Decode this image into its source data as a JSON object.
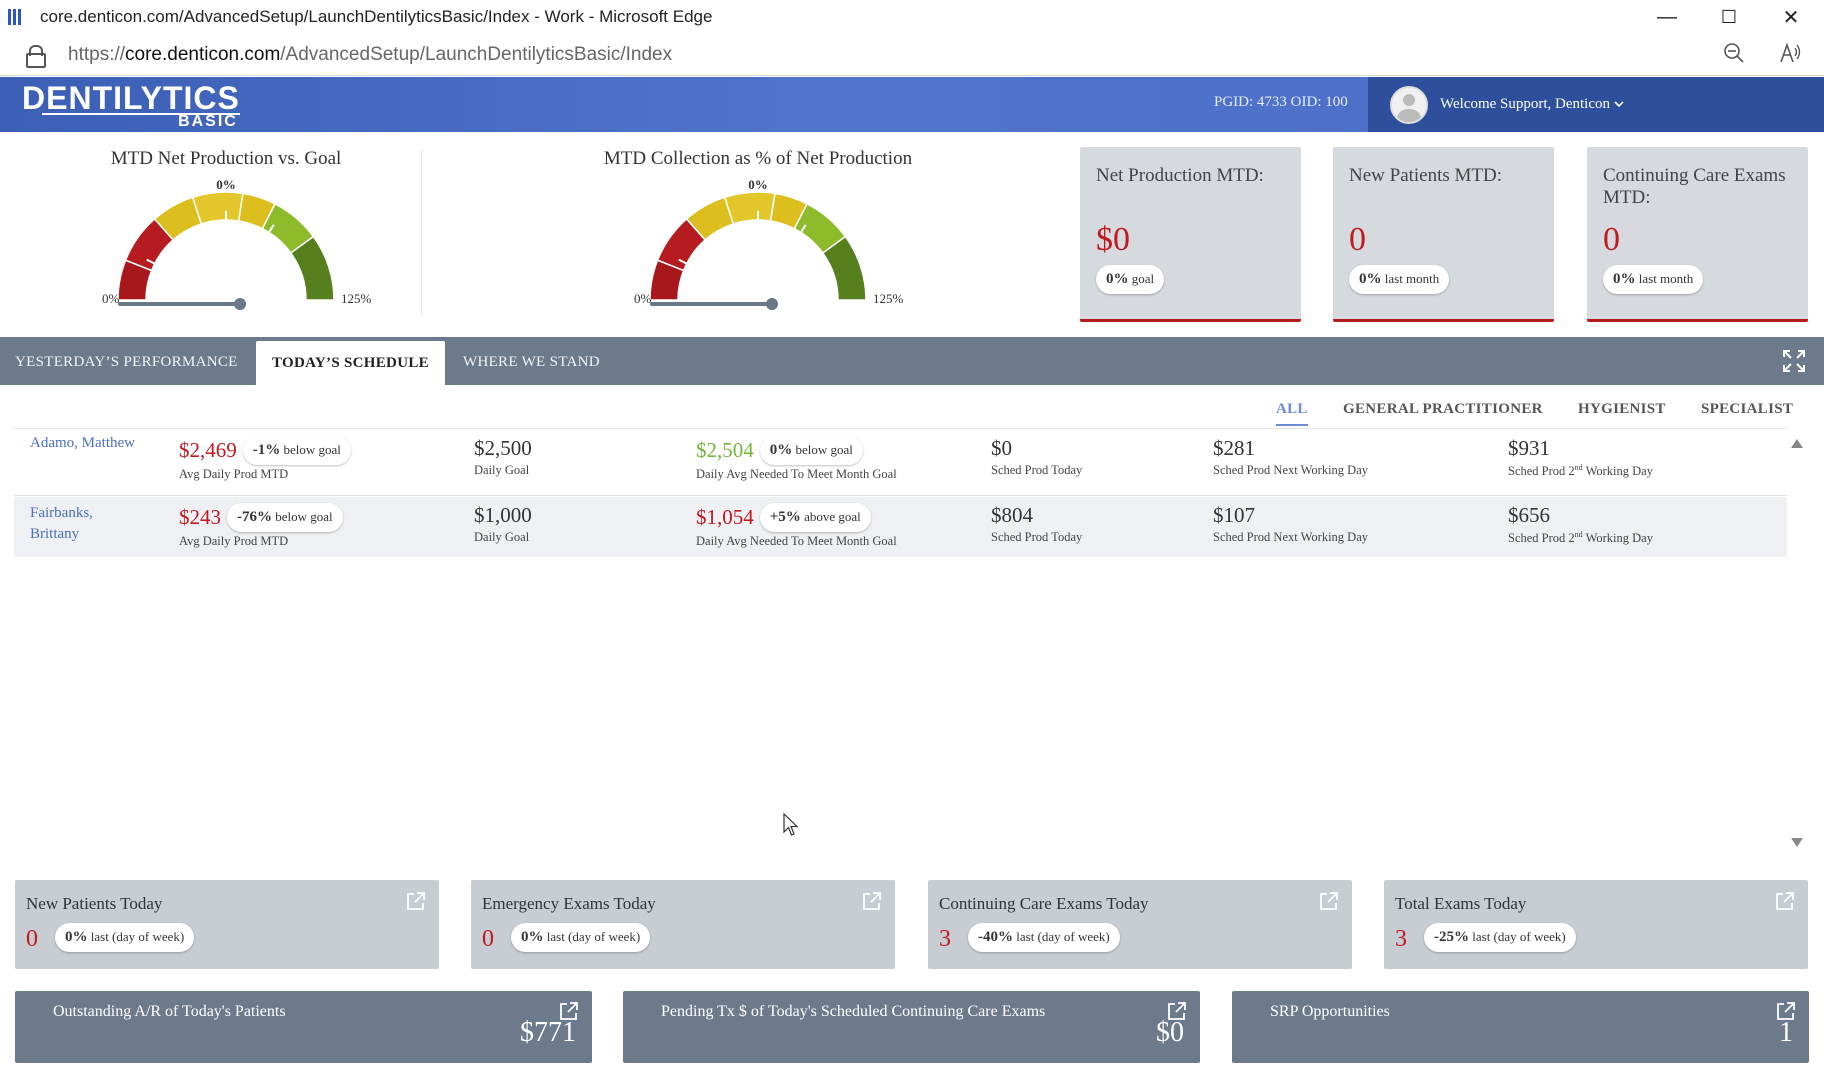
{
  "browser": {
    "window_title": "core.denticon.com/AdvancedSetup/LaunchDentilyticsBasic/Index - Work - Microsoft Edge",
    "url_scheme": "https://",
    "url_host": "core.denticon.com",
    "url_path": "/AdvancedSetup/LaunchDentilyticsBasic/Index",
    "controls": {
      "minimize": "—",
      "maximize": "☐",
      "close": "✕"
    }
  },
  "header": {
    "logo_main": "DENTILYTICS",
    "logo_sub": "BASIC",
    "pgid": "PGID: 4733 OID: 100",
    "welcome": "Welcome Support, Denticon"
  },
  "gauges": [
    {
      "title": "MTD Net Production vs. Goal",
      "value_label": "0%",
      "min_label": "0%",
      "max_label": "125%",
      "value_fraction": 0.0
    },
    {
      "title": "MTD Collection as % of Net Production",
      "value_label": "0%",
      "min_label": "0%",
      "max_label": "125%",
      "value_fraction": 0.0
    }
  ],
  "stat_cards": [
    {
      "title": "Net Production MTD:",
      "value": "$0",
      "pill_pct": "0%",
      "pill_text": "goal"
    },
    {
      "title": "New Patients MTD:",
      "value": "0",
      "pill_pct": "0%",
      "pill_text": "last month"
    },
    {
      "title": "Continuing Care Exams MTD:",
      "value": "0",
      "pill_pct": "0%",
      "pill_text": "last month"
    }
  ],
  "tabs": [
    {
      "label": "YESTERDAY’S PERFORMANCE",
      "active": false
    },
    {
      "label": "TODAY’S SCHEDULE",
      "active": true
    },
    {
      "label": "WHERE WE STAND",
      "active": false
    }
  ],
  "filters": [
    {
      "label": "ALL",
      "active": true
    },
    {
      "label": "GENERAL PRACTITIONER",
      "active": false
    },
    {
      "label": "HYGIENIST",
      "active": false
    },
    {
      "label": "SPECIALIST",
      "active": false
    }
  ],
  "labels": {
    "avg_daily_prod": "Avg Daily Prod MTD",
    "daily_goal": "Daily Goal",
    "daily_avg_needed": "Daily Avg Needed To Meet Month Goal",
    "sched_today": "Sched Prod Today",
    "sched_next": "Sched Prod Next Working Day",
    "sched_2nd_pre": "Sched Prod 2",
    "sched_2nd_sup": "nd",
    "sched_2nd_post": " Working Day"
  },
  "providers": [
    {
      "name_line1": "Adamo, Matthew",
      "name_line2": "",
      "avg_daily": "$2,469",
      "avg_pill_pct": "-1%",
      "avg_pill_text": "below goal",
      "daily_goal": "$2,500",
      "needed": "$2,504",
      "needed_pill_pct": "0%",
      "needed_pill_text": "below goal",
      "needed_color": "#74b43b",
      "sched_today": "$0",
      "sched_next": "$281",
      "sched_2nd": "$931"
    },
    {
      "name_line1": "Fairbanks,",
      "name_line2": "Brittany",
      "avg_daily": "$243",
      "avg_pill_pct": "-76%",
      "avg_pill_text": "below goal",
      "daily_goal": "$1,000",
      "needed": "$1,054",
      "needed_pill_pct": "+5%",
      "needed_pill_text": "above goal",
      "needed_color": "#c0191f",
      "sched_today": "$804",
      "sched_next": "$107",
      "sched_2nd": "$656"
    }
  ],
  "today_tiles": [
    {
      "title": "New Patients Today",
      "value": "0",
      "pill_pct": "0%",
      "pill_text": "last (day of week)"
    },
    {
      "title": "Emergency Exams Today",
      "value": "0",
      "pill_pct": "0%",
      "pill_text": "last (day of week)"
    },
    {
      "title": "Continuing Care Exams Today",
      "value": "3",
      "pill_pct": "-40%",
      "pill_text": "last (day of week)"
    },
    {
      "title": "Total Exams Today",
      "value": "3",
      "pill_pct": "-25%",
      "pill_text": "last (day of week)"
    }
  ],
  "bottom_bars": [
    {
      "title": "Outstanding A/R of Today's Patients",
      "value": "$771"
    },
    {
      "title": "Pending Tx $ of Today's Scheduled Continuing Care Exams",
      "value": "$0"
    },
    {
      "title": "SRP Opportunities",
      "value": "1"
    }
  ],
  "colors": {
    "header_blue": "#4a6dc6",
    "user_box": "#2e4f9c",
    "tab_bar": "#6c7a8c",
    "negative_red": "#c0191f",
    "positive_green": "#74b43b",
    "link_blue": "#4a6fc0"
  },
  "icons": [
    "edge-icon",
    "lock-icon",
    "zoom-out-icon",
    "read-aloud-icon",
    "chevron-down-icon",
    "fullscreen-icon",
    "external-link-icon",
    "scroll-up-icon",
    "scroll-down-icon"
  ]
}
